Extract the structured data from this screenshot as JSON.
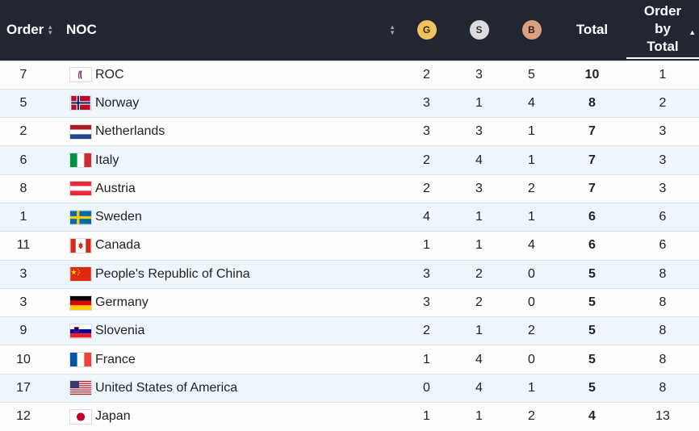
{
  "header": {
    "order": "Order",
    "noc": "NOC",
    "gold": "G",
    "silver": "S",
    "bronze": "B",
    "total": "Total",
    "order_by_total_line1": "Order",
    "order_by_total_line2": "by",
    "order_by_total_line3": "Total"
  },
  "colors": {
    "header_bg": "#222633",
    "gold": "#f1c260",
    "silver": "#dcdcdc",
    "bronze": "#d9a17f",
    "row_alt": "#eef6fd"
  },
  "rows": [
    {
      "order": "7",
      "noc": "ROC",
      "flag": "roc-flag-icon",
      "g": "2",
      "s": "3",
      "b": "5",
      "total": "10",
      "obt": "1"
    },
    {
      "order": "5",
      "noc": "Norway",
      "flag": "norway-flag-icon",
      "g": "3",
      "s": "1",
      "b": "4",
      "total": "8",
      "obt": "2"
    },
    {
      "order": "2",
      "noc": "Netherlands",
      "flag": "netherlands-flag-icon",
      "g": "3",
      "s": "3",
      "b": "1",
      "total": "7",
      "obt": "3"
    },
    {
      "order": "6",
      "noc": "Italy",
      "flag": "italy-flag-icon",
      "g": "2",
      "s": "4",
      "b": "1",
      "total": "7",
      "obt": "3"
    },
    {
      "order": "8",
      "noc": "Austria",
      "flag": "austria-flag-icon",
      "g": "2",
      "s": "3",
      "b": "2",
      "total": "7",
      "obt": "3"
    },
    {
      "order": "1",
      "noc": "Sweden",
      "flag": "sweden-flag-icon",
      "g": "4",
      "s": "1",
      "b": "1",
      "total": "6",
      "obt": "6"
    },
    {
      "order": "11",
      "noc": "Canada",
      "flag": "canada-flag-icon",
      "g": "1",
      "s": "1",
      "b": "4",
      "total": "6",
      "obt": "6"
    },
    {
      "order": "3",
      "noc": "People's Republic of China",
      "flag": "china-flag-icon",
      "g": "3",
      "s": "2",
      "b": "0",
      "total": "5",
      "obt": "8"
    },
    {
      "order": "3",
      "noc": "Germany",
      "flag": "germany-flag-icon",
      "g": "3",
      "s": "2",
      "b": "0",
      "total": "5",
      "obt": "8"
    },
    {
      "order": "9",
      "noc": "Slovenia",
      "flag": "slovenia-flag-icon",
      "g": "2",
      "s": "1",
      "b": "2",
      "total": "5",
      "obt": "8"
    },
    {
      "order": "10",
      "noc": "France",
      "flag": "france-flag-icon",
      "g": "1",
      "s": "4",
      "b": "0",
      "total": "5",
      "obt": "8"
    },
    {
      "order": "17",
      "noc": "United States of America",
      "flag": "usa-flag-icon",
      "g": "0",
      "s": "4",
      "b": "1",
      "total": "5",
      "obt": "8"
    },
    {
      "order": "12",
      "noc": "Japan",
      "flag": "japan-flag-icon",
      "g": "1",
      "s": "1",
      "b": "2",
      "total": "4",
      "obt": "13"
    }
  ]
}
